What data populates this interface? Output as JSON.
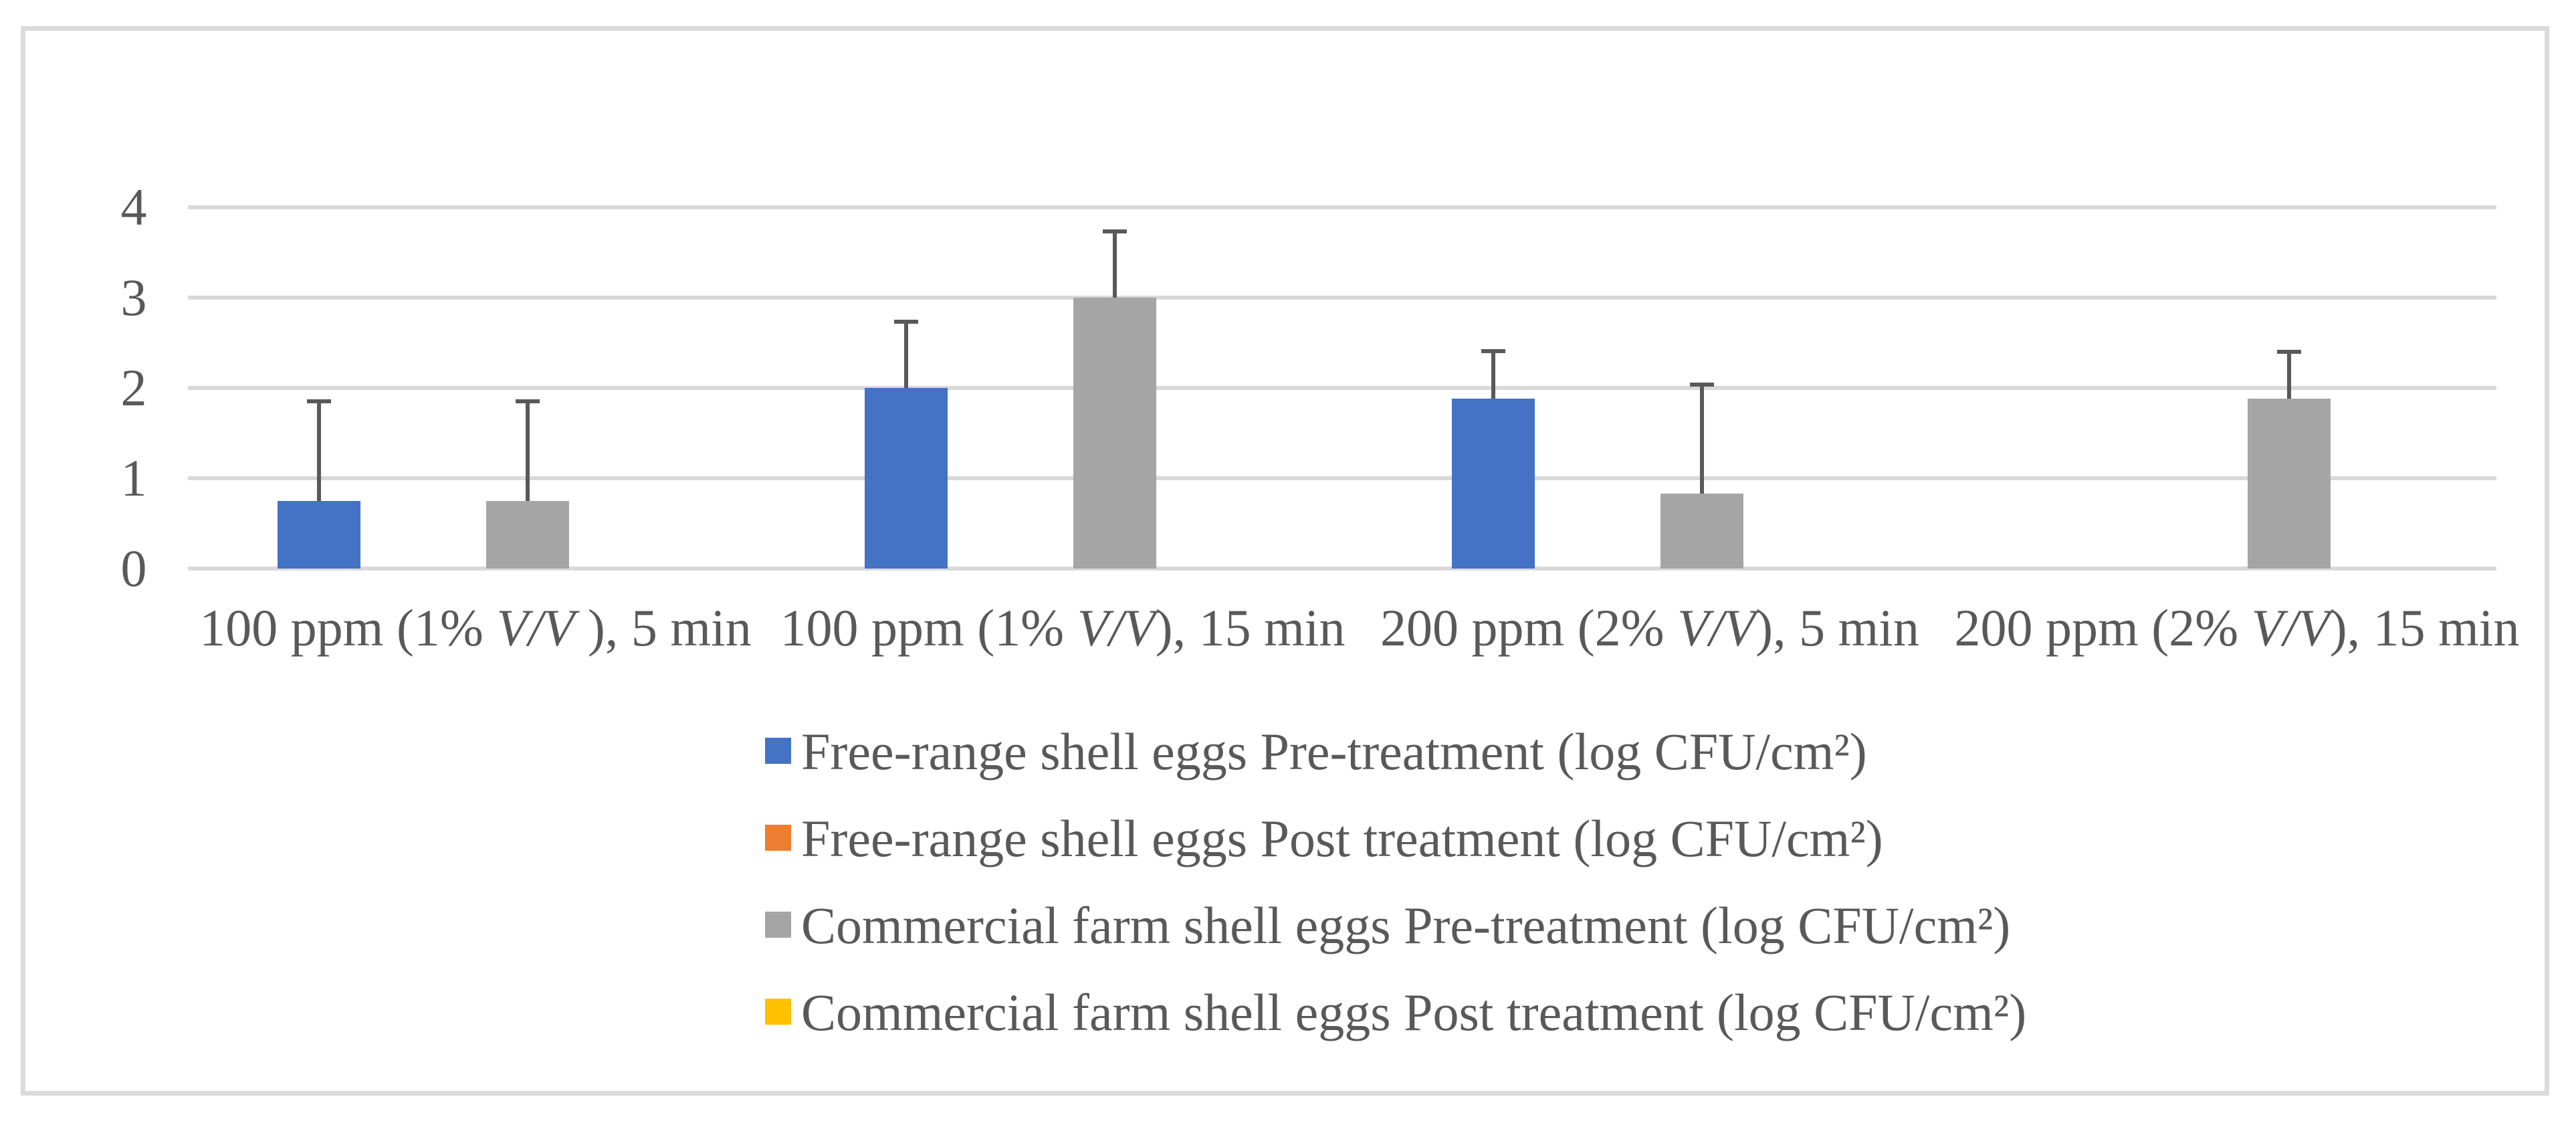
{
  "figure": {
    "background": "#FFFFFF",
    "border_color": "#DBDBDB"
  },
  "chart_data": {
    "type": "bar",
    "title": "",
    "xlabel": "",
    "ylabel": "",
    "grid": true,
    "legend_position": "bottom",
    "gridline_color": "#D9D9D9",
    "error_bar_color": "#595959",
    "text_color": "#595959",
    "y_axis": {
      "min": 0,
      "max": 4,
      "ticks": [
        0,
        1,
        2,
        3,
        4
      ]
    },
    "categories": [
      {
        "prefix": "100 ppm (1% ",
        "vv": "V/V",
        "suffix": " ), 5 min"
      },
      {
        "prefix": "100 ppm (1% ",
        "vv": "V/V",
        "suffix": "), 15 min"
      },
      {
        "prefix": "200 ppm (2% ",
        "vv": "V/V",
        "suffix": "), 5 min"
      },
      {
        "prefix": "200 ppm (2% ",
        "vv": "V/V",
        "suffix": "), 15 min"
      }
    ],
    "series": [
      {
        "name": "Free-range shell eggs Pre-treatment (log CFU/cm²)",
        "color": "#4472C4",
        "values": [
          0.75,
          2.0,
          1.88,
          0
        ],
        "error_tops": [
          1.85,
          2.73,
          2.41,
          null
        ]
      },
      {
        "name": "Free-range shell eggs Post treatment (log CFU/cm²)",
        "color": "#ED7D31",
        "values": [
          0,
          0,
          0,
          0
        ],
        "error_tops": [
          null,
          null,
          null,
          null
        ]
      },
      {
        "name": "Commercial farm shell eggs Pre-treatment (log CFU/cm²)",
        "color": "#A5A5A5",
        "values": [
          0.75,
          3.0,
          0.83,
          1.88
        ],
        "error_tops": [
          1.85,
          3.73,
          2.04,
          2.4
        ]
      },
      {
        "name": "Commercial farm shell eggs Post treatment (log CFU/cm²)",
        "color": "#FFC000",
        "values": [
          0,
          0,
          0,
          0
        ],
        "error_tops": [
          null,
          null,
          null,
          null
        ]
      }
    ]
  }
}
